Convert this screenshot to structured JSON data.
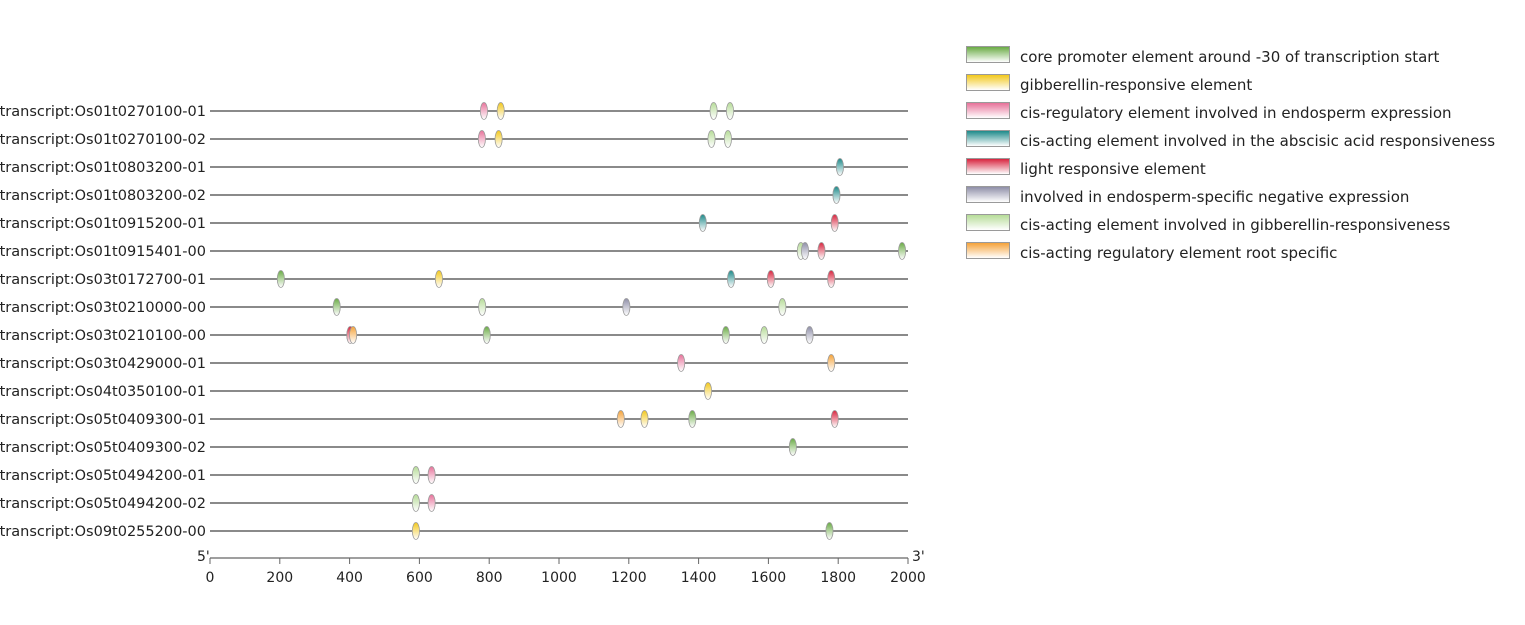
{
  "chart_data": {
    "type": "scatter",
    "x_range": [
      0,
      2000
    ],
    "x_ticks": [
      "0",
      "200",
      "400",
      "600",
      "800",
      "1000",
      "1200",
      "1400",
      "1600",
      "1800",
      "2000"
    ],
    "end_labels": {
      "left": "5'",
      "right": "3'"
    },
    "legend": [
      {
        "key": "core",
        "label": "core promoter element around -30 of transcription start",
        "color": "#6aab45"
      },
      {
        "key": "gib",
        "label": "gibberellin-responsive element",
        "color": "#f2c81c"
      },
      {
        "key": "endo",
        "label": "cis-regulatory element involved in endosperm expression",
        "color": "#e7729a"
      },
      {
        "key": "aba",
        "label": "cis-acting element involved in the abscisic acid responsiveness",
        "color": "#1e8a8a"
      },
      {
        "key": "light",
        "label": "light responsive element",
        "color": "#d8253f"
      },
      {
        "key": "neg",
        "label": "involved in endosperm-specific negative expression",
        "color": "#8f8fa8"
      },
      {
        "key": "gib2",
        "label": "cis-acting element involved in gibberellin-responsiveness",
        "color": "#b6dc98"
      },
      {
        "key": "root",
        "label": "cis-acting regulatory element root specific",
        "color": "#f5a33a"
      }
    ],
    "rows": [
      {
        "label": "transcript:Os01t0270100-01",
        "marks": [
          {
            "x": 785,
            "t": "endo"
          },
          {
            "x": 833,
            "t": "gib"
          },
          {
            "x": 1443,
            "t": "gib2"
          },
          {
            "x": 1490,
            "t": "gib2"
          }
        ]
      },
      {
        "label": "transcript:Os01t0270100-02",
        "marks": [
          {
            "x": 779,
            "t": "endo"
          },
          {
            "x": 827,
            "t": "gib"
          },
          {
            "x": 1437,
            "t": "gib2"
          },
          {
            "x": 1484,
            "t": "gib2"
          }
        ]
      },
      {
        "label": "transcript:Os01t0803200-01",
        "marks": [
          {
            "x": 1805,
            "t": "aba"
          }
        ]
      },
      {
        "label": "transcript:Os01t0803200-02",
        "marks": [
          {
            "x": 1795,
            "t": "aba"
          }
        ]
      },
      {
        "label": "transcript:Os01t0915200-01",
        "marks": [
          {
            "x": 1412,
            "t": "aba"
          },
          {
            "x": 1790,
            "t": "light"
          }
        ]
      },
      {
        "label": "transcript:Os01t0915401-00",
        "marks": [
          {
            "x": 1693,
            "t": "gib2"
          },
          {
            "x": 1705,
            "t": "neg"
          },
          {
            "x": 1752,
            "t": "light"
          },
          {
            "x": 1983,
            "t": "core"
          }
        ]
      },
      {
        "label": "transcript:Os03t0172700-01",
        "marks": [
          {
            "x": 203,
            "t": "core"
          },
          {
            "x": 656,
            "t": "gib"
          },
          {
            "x": 1493,
            "t": "aba"
          },
          {
            "x": 1607,
            "t": "light"
          },
          {
            "x": 1780,
            "t": "light"
          }
        ]
      },
      {
        "label": "transcript:Os03t0210000-00",
        "marks": [
          {
            "x": 363,
            "t": "core"
          },
          {
            "x": 780,
            "t": "gib2"
          },
          {
            "x": 1193,
            "t": "neg"
          },
          {
            "x": 1640,
            "t": "gib2"
          }
        ]
      },
      {
        "label": "transcript:Os03t0210100-00",
        "marks": [
          {
            "x": 402,
            "t": "light"
          },
          {
            "x": 410,
            "t": "root"
          },
          {
            "x": 793,
            "t": "core"
          },
          {
            "x": 1478,
            "t": "core"
          },
          {
            "x": 1588,
            "t": "gib2"
          },
          {
            "x": 1718,
            "t": "neg"
          }
        ]
      },
      {
        "label": "transcript:Os03t0429000-01",
        "marks": [
          {
            "x": 1350,
            "t": "endo"
          },
          {
            "x": 1780,
            "t": "root"
          }
        ]
      },
      {
        "label": "transcript:Os04t0350100-01",
        "marks": [
          {
            "x": 1427,
            "t": "gib"
          }
        ]
      },
      {
        "label": "transcript:Os05t0409300-01",
        "marks": [
          {
            "x": 1177,
            "t": "root"
          },
          {
            "x": 1245,
            "t": "gib"
          },
          {
            "x": 1382,
            "t": "core"
          },
          {
            "x": 1790,
            "t": "light"
          }
        ]
      },
      {
        "label": "transcript:Os05t0409300-02",
        "marks": [
          {
            "x": 1670,
            "t": "core"
          }
        ]
      },
      {
        "label": "transcript:Os05t0494200-01",
        "marks": [
          {
            "x": 590,
            "t": "gib2"
          },
          {
            "x": 635,
            "t": "endo"
          }
        ]
      },
      {
        "label": "transcript:Os05t0494200-02",
        "marks": [
          {
            "x": 590,
            "t": "gib2"
          },
          {
            "x": 635,
            "t": "endo"
          }
        ]
      },
      {
        "label": "transcript:Os09t0255200-00",
        "marks": [
          {
            "x": 590,
            "t": "gib"
          },
          {
            "x": 1775,
            "t": "core"
          }
        ]
      }
    ]
  }
}
